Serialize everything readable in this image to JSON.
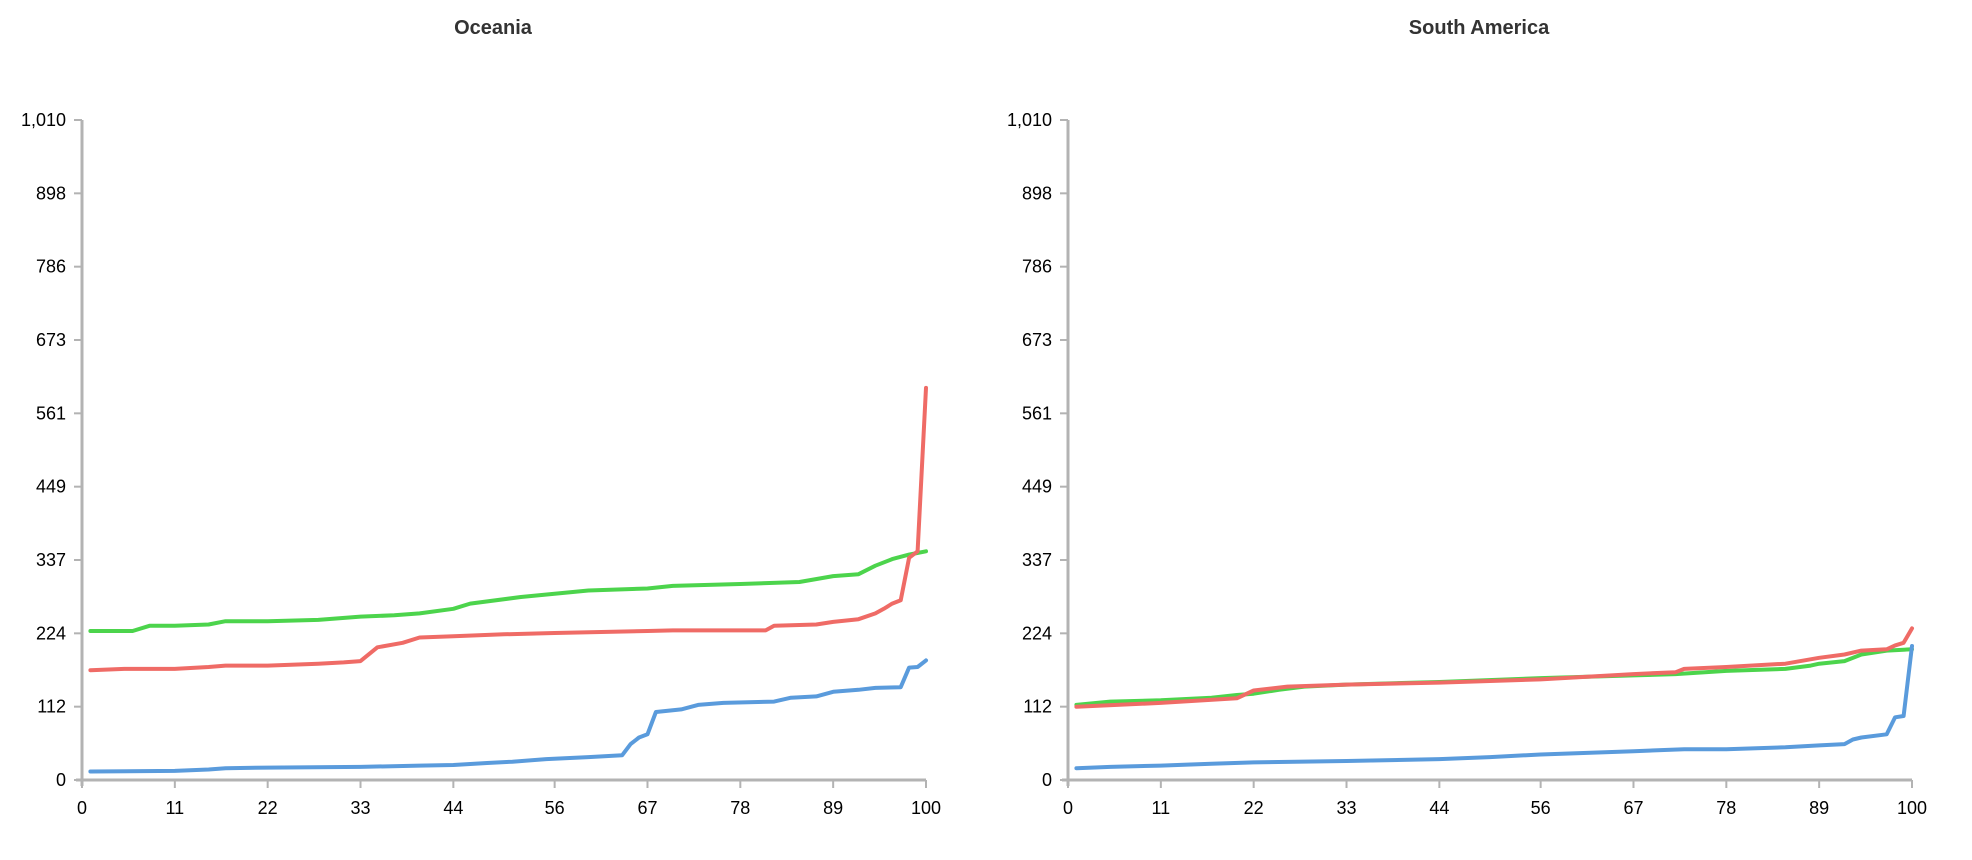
{
  "chart_data": [
    {
      "type": "line",
      "title": "Oceania",
      "xlim": [
        0,
        100
      ],
      "ylim": [
        0,
        1010
      ],
      "x_ticks": [
        "0",
        "11",
        "22",
        "33",
        "44",
        "56",
        "67",
        "78",
        "89",
        "100"
      ],
      "y_ticks": [
        "0",
        "112",
        "224",
        "337",
        "449",
        "561",
        "673",
        "786",
        "898",
        "1,010"
      ],
      "grid": false,
      "series": [
        {
          "color": "#4cd44c",
          "points": [
            [
              1,
              228
            ],
            [
              6,
              228
            ],
            [
              8,
              236
            ],
            [
              11,
              236
            ],
            [
              15,
              238
            ],
            [
              17,
              243
            ],
            [
              22,
              243
            ],
            [
              28,
              245
            ],
            [
              33,
              250
            ],
            [
              37,
              252
            ],
            [
              40,
              255
            ],
            [
              44,
              262
            ],
            [
              46,
              270
            ],
            [
              52,
              280
            ],
            [
              56,
              285
            ],
            [
              60,
              290
            ],
            [
              67,
              293
            ],
            [
              70,
              297
            ],
            [
              78,
              300
            ],
            [
              85,
              303
            ],
            [
              89,
              312
            ],
            [
              92,
              315
            ],
            [
              94,
              328
            ],
            [
              96,
              338
            ],
            [
              98,
              345
            ],
            [
              100,
              350
            ]
          ]
        },
        {
          "color": "#ef6b66",
          "points": [
            [
              1,
              168
            ],
            [
              5,
              170
            ],
            [
              11,
              170
            ],
            [
              15,
              173
            ],
            [
              17,
              175
            ],
            [
              22,
              175
            ],
            [
              28,
              178
            ],
            [
              31,
              180
            ],
            [
              33,
              182
            ],
            [
              35,
              203
            ],
            [
              38,
              210
            ],
            [
              40,
              218
            ],
            [
              44,
              220
            ],
            [
              50,
              223
            ],
            [
              56,
              225
            ],
            [
              67,
              228
            ],
            [
              70,
              229
            ],
            [
              81,
              229
            ],
            [
              82,
              236
            ],
            [
              87,
              238
            ],
            [
              89,
              242
            ],
            [
              92,
              246
            ],
            [
              94,
              255
            ],
            [
              95,
              262
            ],
            [
              96,
              270
            ],
            [
              97,
              275
            ],
            [
              98,
              340
            ],
            [
              99,
              350
            ],
            [
              100,
              600
            ]
          ]
        },
        {
          "color": "#5a9bdc",
          "points": [
            [
              1,
              13
            ],
            [
              11,
              14
            ],
            [
              15,
              16
            ],
            [
              17,
              18
            ],
            [
              22,
              19
            ],
            [
              33,
              20
            ],
            [
              40,
              22
            ],
            [
              44,
              23
            ],
            [
              48,
              26
            ],
            [
              51,
              28
            ],
            [
              55,
              32
            ],
            [
              60,
              35
            ],
            [
              64,
              38
            ],
            [
              65,
              55
            ],
            [
              66,
              65
            ],
            [
              67,
              70
            ],
            [
              68,
              104
            ],
            [
              71,
              108
            ],
            [
              73,
              115
            ],
            [
              76,
              118
            ],
            [
              82,
              120
            ],
            [
              84,
              126
            ],
            [
              87,
              128
            ],
            [
              89,
              135
            ],
            [
              92,
              138
            ],
            [
              94,
              141
            ],
            [
              97,
              142
            ],
            [
              98,
              172
            ],
            [
              99,
              173
            ],
            [
              100,
              183
            ]
          ]
        }
      ]
    },
    {
      "type": "line",
      "title": "South America",
      "xlim": [
        0,
        100
      ],
      "ylim": [
        0,
        1010
      ],
      "x_ticks": [
        "0",
        "11",
        "22",
        "33",
        "44",
        "56",
        "67",
        "78",
        "89",
        "100"
      ],
      "y_ticks": [
        "0",
        "112",
        "224",
        "337",
        "449",
        "561",
        "673",
        "786",
        "898",
        "1,010"
      ],
      "grid": false,
      "series": [
        {
          "color": "#4cd44c",
          "points": [
            [
              1,
              115
            ],
            [
              5,
              120
            ],
            [
              11,
              122
            ],
            [
              17,
              126
            ],
            [
              20,
              130
            ],
            [
              22,
              132
            ],
            [
              25,
              138
            ],
            [
              28,
              143
            ],
            [
              33,
              146
            ],
            [
              44,
              150
            ],
            [
              56,
              156
            ],
            [
              67,
              160
            ],
            [
              72,
              162
            ],
            [
              78,
              167
            ],
            [
              85,
              170
            ],
            [
              88,
              175
            ],
            [
              89,
              178
            ],
            [
              92,
              182
            ],
            [
              94,
              192
            ],
            [
              97,
              198
            ],
            [
              100,
              200
            ]
          ]
        },
        {
          "color": "#ef6b66",
          "points": [
            [
              1,
              112
            ],
            [
              11,
              118
            ],
            [
              20,
              125
            ],
            [
              22,
              137
            ],
            [
              26,
              143
            ],
            [
              33,
              146
            ],
            [
              44,
              149
            ],
            [
              56,
              154
            ],
            [
              67,
              162
            ],
            [
              72,
              165
            ],
            [
              73,
              170
            ],
            [
              78,
              173
            ],
            [
              85,
              178
            ],
            [
              89,
              187
            ],
            [
              92,
              192
            ],
            [
              94,
              198
            ],
            [
              97,
              200
            ],
            [
              98,
              206
            ],
            [
              99,
              210
            ],
            [
              100,
              232
            ]
          ]
        },
        {
          "color": "#5a9bdc",
          "points": [
            [
              1,
              18
            ],
            [
              5,
              20
            ],
            [
              11,
              22
            ],
            [
              17,
              25
            ],
            [
              22,
              27
            ],
            [
              33,
              29
            ],
            [
              44,
              32
            ],
            [
              50,
              35
            ],
            [
              56,
              39
            ],
            [
              67,
              44
            ],
            [
              73,
              47
            ],
            [
              78,
              47
            ],
            [
              85,
              50
            ],
            [
              89,
              53
            ],
            [
              92,
              55
            ],
            [
              93,
              62
            ],
            [
              94,
              65
            ],
            [
              97,
              70
            ],
            [
              98,
              96
            ],
            [
              99,
              98
            ],
            [
              100,
              205
            ]
          ]
        }
      ]
    }
  ]
}
